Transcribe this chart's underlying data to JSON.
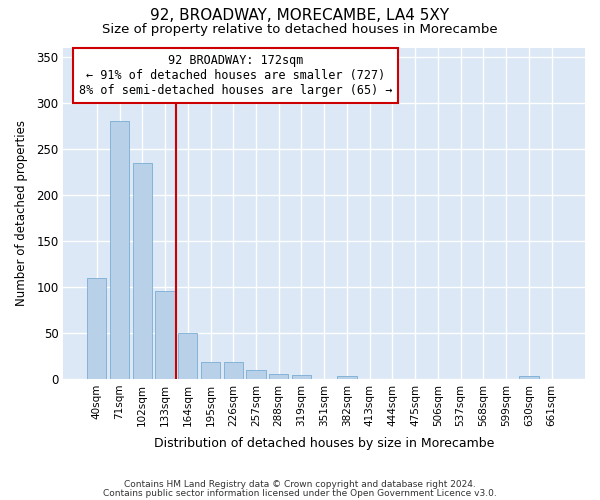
{
  "title": "92, BROADWAY, MORECAMBE, LA4 5XY",
  "subtitle": "Size of property relative to detached houses in Morecambe",
  "xlabel": "Distribution of detached houses by size in Morecambe",
  "ylabel": "Number of detached properties",
  "categories": [
    "40sqm",
    "71sqm",
    "102sqm",
    "133sqm",
    "164sqm",
    "195sqm",
    "226sqm",
    "257sqm",
    "288sqm",
    "319sqm",
    "351sqm",
    "382sqm",
    "413sqm",
    "444sqm",
    "475sqm",
    "506sqm",
    "537sqm",
    "568sqm",
    "599sqm",
    "630sqm",
    "661sqm"
  ],
  "values": [
    110,
    280,
    235,
    95,
    50,
    18,
    18,
    10,
    5,
    4,
    0,
    3,
    0,
    0,
    0,
    0,
    0,
    0,
    0,
    3,
    0
  ],
  "bar_color": "#b8d0e8",
  "bar_edge_color": "#7aadd4",
  "vline_index": 4,
  "vline_color": "#cc0000",
  "annotation_line1": "92 BROADWAY: 172sqm",
  "annotation_line2": "← 91% of detached houses are smaller (727)",
  "annotation_line3": "8% of semi-detached houses are larger (65) →",
  "annotation_box_color": "#ffffff",
  "annotation_box_edge_color": "#cc0000",
  "ylim": [
    0,
    360
  ],
  "yticks": [
    0,
    50,
    100,
    150,
    200,
    250,
    300,
    350
  ],
  "footer1": "Contains HM Land Registry data © Crown copyright and database right 2024.",
  "footer2": "Contains public sector information licensed under the Open Government Licence v3.0.",
  "fig_bg_color": "#ffffff",
  "plot_bg_color": "#dce8f5"
}
